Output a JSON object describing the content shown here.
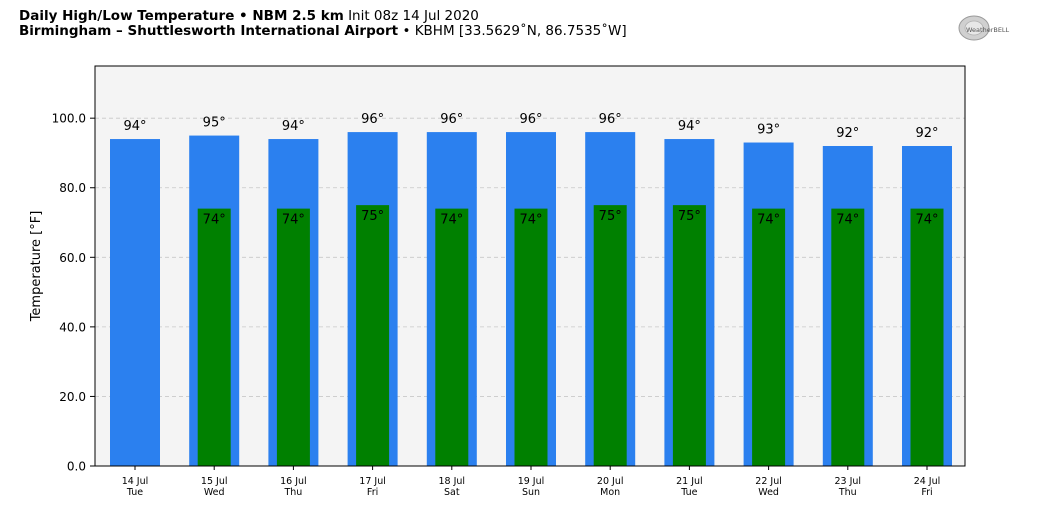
{
  "header": {
    "title_bold": "Daily High/Low Temperature • NBM 2.5 km",
    "title_rest": "Init 08z 14 Jul 2020",
    "subtitle_bold": "Birmingham – Shuttlesworth International Airport",
    "subtitle_rest": "• KBHM [33.5629˚N, 86.7535˚W]"
  },
  "logo": {
    "text": "WeatherBELL",
    "icon": "weatherbell-logo"
  },
  "chart_data": {
    "type": "bar",
    "title": "Daily High/Low Temperature • NBM 2.5 km",
    "ylabel": "Temperature [°F]",
    "xlabel": "",
    "ylim": [
      0,
      115
    ],
    "yticks": [
      0,
      20,
      40,
      60,
      80,
      100
    ],
    "ytick_labels": [
      "0.0",
      "20.0",
      "40.0",
      "60.0",
      "80.0",
      "100.0"
    ],
    "grid": true,
    "categories": [
      {
        "date": "14 Jul",
        "day": "Tue"
      },
      {
        "date": "15 Jul",
        "day": "Wed"
      },
      {
        "date": "16 Jul",
        "day": "Thu"
      },
      {
        "date": "17 Jul",
        "day": "Fri"
      },
      {
        "date": "18 Jul",
        "day": "Sat"
      },
      {
        "date": "19 Jul",
        "day": "Sun"
      },
      {
        "date": "20 Jul",
        "day": "Mon"
      },
      {
        "date": "21 Jul",
        "day": "Tue"
      },
      {
        "date": "22 Jul",
        "day": "Wed"
      },
      {
        "date": "23 Jul",
        "day": "Thu"
      },
      {
        "date": "24 Jul",
        "day": "Fri"
      }
    ],
    "series": [
      {
        "color": "#2b80ef",
        "values": [
          94,
          95,
          94,
          96,
          96,
          96,
          96,
          94,
          93,
          92,
          92
        ],
        "labels": [
          "94°",
          "95°",
          "94°",
          "96°",
          "96°",
          "96°",
          "96°",
          "94°",
          "93°",
          "92°",
          "92°"
        ]
      },
      {
        "color": "#008000",
        "values": [
          null,
          74,
          74,
          75,
          74,
          74,
          75,
          75,
          74,
          74,
          74
        ],
        "labels": [
          "",
          "74°",
          "74°",
          "75°",
          "74°",
          "74°",
          "75°",
          "75°",
          "74°",
          "74°",
          "74°"
        ]
      }
    ],
    "plot_background": "#f4f4f4"
  }
}
